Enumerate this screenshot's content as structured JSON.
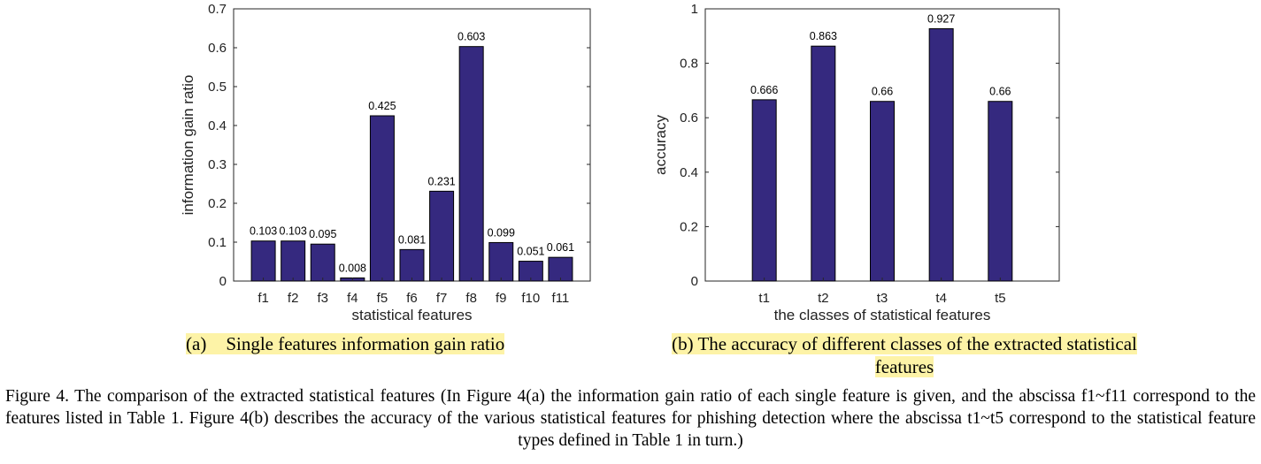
{
  "figure": {
    "caption": "Figure 4.   The comparison of the extracted statistical features (In Figure 4(a) the information gain ratio of each single feature is given, and the abscissa f1~f11 correspond to the features listed in Table 1. Figure 4(b) describes the accuracy of the various statistical features for phishing detection where the abscissa t1~t5 correspond to the statistical feature types defined in Table 1 in turn.)"
  },
  "subcaptions": {
    "a_tag": "(a)",
    "a_text": "Single features information gain ratio",
    "b_text": "(b) The accuracy of different classes of the extracted statistical features"
  },
  "colors": {
    "bar": "#35297f",
    "axis": "#262626"
  },
  "chart_data": [
    {
      "type": "bar",
      "categories": [
        "f1",
        "f2",
        "f3",
        "f4",
        "f5",
        "f6",
        "f7",
        "f8",
        "f9",
        "f10",
        "f11"
      ],
      "values": [
        0.103,
        0.103,
        0.095,
        0.008,
        0.425,
        0.081,
        0.231,
        0.603,
        0.099,
        0.051,
        0.061
      ],
      "value_labels": [
        "0.103",
        "0.103",
        "0.095",
        "0.008",
        "0.425",
        "0.081",
        "0.231",
        "0.603",
        "0.099",
        "0.051",
        "0.061"
      ],
      "xlabel": "statistical features",
      "ylabel": "information gain ratio",
      "ylim": [
        0,
        0.7
      ],
      "yticks": [
        0,
        0.1,
        0.2,
        0.3,
        0.4,
        0.5,
        0.6,
        0.7
      ],
      "ytick_labels": [
        "0",
        "0.1",
        "0.2",
        "0.3",
        "0.4",
        "0.5",
        "0.6",
        "0.7"
      ],
      "grid": false
    },
    {
      "type": "bar",
      "categories": [
        "t1",
        "t2",
        "t3",
        "t4",
        "t5"
      ],
      "values": [
        0.666,
        0.863,
        0.66,
        0.927,
        0.66
      ],
      "value_labels": [
        "0.666",
        "0.863",
        "0.66",
        "0.927",
        "0.66"
      ],
      "xlabel": "the classes of statistical features",
      "ylabel": "accuracy",
      "ylim": [
        0,
        1
      ],
      "yticks": [
        0,
        0.2,
        0.4,
        0.6,
        0.8,
        1
      ],
      "ytick_labels": [
        "0",
        "0.2",
        "0.4",
        "0.6",
        "0.8",
        "1"
      ],
      "xlim": [
        0,
        6
      ],
      "grid": false
    }
  ]
}
